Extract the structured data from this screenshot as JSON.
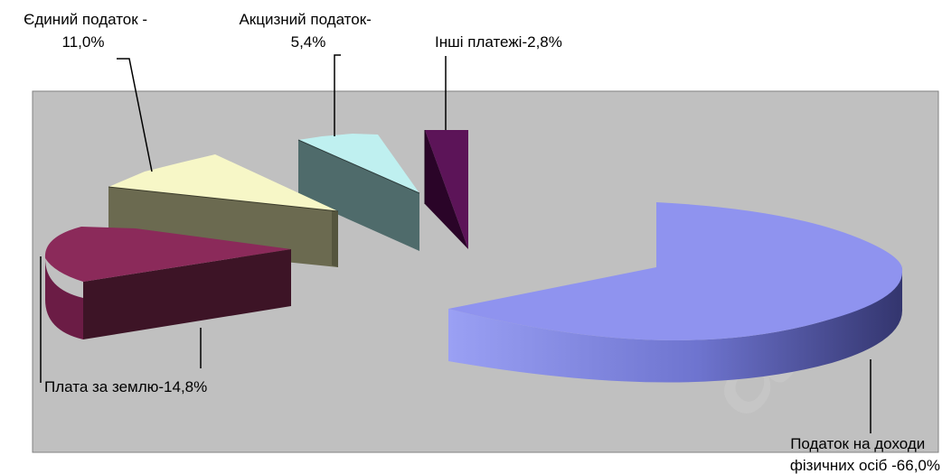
{
  "chart_data": {
    "type": "pie",
    "style": "exploded 3D pie",
    "title": "",
    "legend": "none",
    "grid": false,
    "slices": [
      {
        "label_lines": [
          "Податок на доходи",
          "фізичних осіб -66,0%"
        ],
        "value": 66.0,
        "color": "#8f93ef"
      },
      {
        "label_lines": [
          "Плата за землю-14,8%"
        ],
        "value": 14.8,
        "color": "#8b2a5a"
      },
      {
        "label_lines": [
          "Єдиний податок -",
          "11,0%"
        ],
        "value": 11.0,
        "color": "#f7f7c7"
      },
      {
        "label_lines": [
          "Акцизний податок-",
          "5,4%"
        ],
        "value": 5.4,
        "color": "#bff0f0"
      },
      {
        "label_lines": [
          "Інші платежі-2,8%"
        ],
        "value": 2.8,
        "color": "#5c1458"
      }
    ],
    "plot_background": "#c0c0c0"
  }
}
